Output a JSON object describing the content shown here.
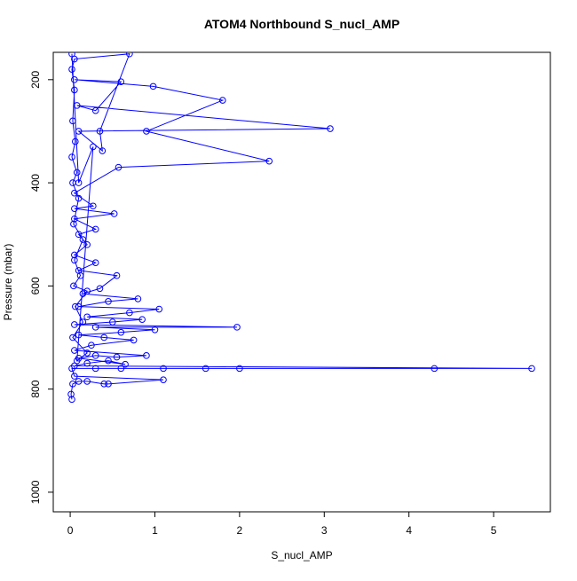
{
  "chart_data": {
    "type": "line",
    "title": "ATOM4 Northbound S_nucl_AMP",
    "x_label": "S_nucl_AMP",
    "y_label": "Pressure (mbar)",
    "xlim": [
      -0.2,
      5.67
    ],
    "xticks": [
      0,
      1,
      2,
      3,
      4,
      5
    ],
    "ylim": [
      1038,
      147
    ],
    "yticks": [
      200,
      400,
      600,
      800,
      1000
    ],
    "markers": "open-circle",
    "series": [
      {
        "color": "#0000ff",
        "x": [
          0.02,
          0.01,
          0.03,
          0.1,
          0.2,
          0.4,
          0.45,
          1.1,
          0.05,
          0.02,
          0.3,
          0.6,
          1.1,
          1.6,
          2.0,
          4.3,
          5.45,
          0.05,
          0.2,
          0.45,
          0.65,
          0.1,
          0.3,
          0.55,
          0.9,
          0.05,
          0.25,
          0.75,
          0.4,
          0.1,
          0.6,
          1.0,
          0.3,
          1.97,
          0.05,
          0.5,
          0.85,
          0.2,
          0.7,
          1.05,
          0.1,
          0.45,
          0.8,
          0.15,
          0.35,
          0.55,
          0.1,
          0.3,
          0.05,
          0.2,
          0.1,
          0.3,
          0.05,
          0.52,
          0.05,
          0.27,
          0.05,
          0.57,
          2.35,
          0.9,
          1.8,
          0.98,
          0.05,
          0.6,
          0.3,
          0.08,
          3.07,
          0.1,
          0.38,
          0.35,
          0.7,
          0.05,
          0.02,
          0.05,
          0.03,
          0.06,
          0.02,
          0.08,
          0.03,
          0.1,
          0.04,
          0.15,
          0.05,
          0.12,
          0.04,
          0.2,
          0.06,
          0.15,
          0.03,
          0.2,
          0.08,
          0.27,
          0.1,
          0.02
        ],
        "values": [
          820,
          810,
          790,
          785,
          785,
          790,
          790,
          782,
          775,
          760,
          760,
          760,
          760,
          760,
          760,
          760,
          760,
          755,
          750,
          745,
          752,
          740,
          735,
          738,
          735,
          725,
          715,
          705,
          700,
          695,
          690,
          685,
          680,
          680,
          675,
          670,
          665,
          660,
          652,
          645,
          640,
          630,
          625,
          615,
          605,
          580,
          570,
          555,
          540,
          520,
          500,
          490,
          470,
          460,
          450,
          445,
          420,
          370,
          358,
          300,
          240,
          213,
          200,
          204,
          260,
          250,
          295,
          300,
          338,
          300,
          150,
          160,
          180,
          220,
          280,
          320,
          350,
          380,
          400,
          430,
          480,
          510,
          550,
          580,
          600,
          610,
          640,
          670,
          700,
          730,
          745,
          330,
          400,
          150
        ]
      }
    ]
  }
}
